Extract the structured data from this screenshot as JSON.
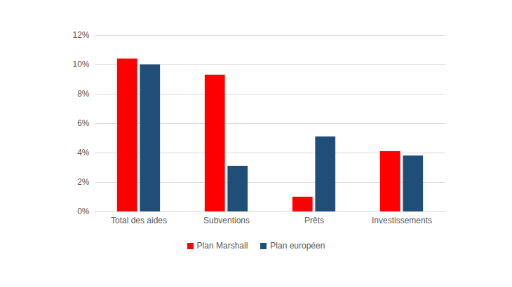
{
  "chart_data": {
    "type": "bar",
    "categories": [
      "Total des aides",
      "Subventions",
      "Prêts",
      "Investissements"
    ],
    "series": [
      {
        "name": "Plan Marshall",
        "color": "#ff0000",
        "values": [
          10.4,
          9.3,
          1.0,
          4.1
        ]
      },
      {
        "name": "Plan européen",
        "color": "#1f4e79",
        "values": [
          10.0,
          3.1,
          5.1,
          3.8
        ]
      }
    ],
    "ylim": [
      0,
      12
    ],
    "yticks": [
      {
        "value": 0,
        "label": "0%"
      },
      {
        "value": 2,
        "label": "2%"
      },
      {
        "value": 4,
        "label": "4%"
      },
      {
        "value": 6,
        "label": "6%"
      },
      {
        "value": 8,
        "label": "8%"
      },
      {
        "value": 10,
        "label": "10%"
      },
      {
        "value": 12,
        "label": "12%"
      }
    ],
    "grid": true,
    "legend": "bottom"
  }
}
